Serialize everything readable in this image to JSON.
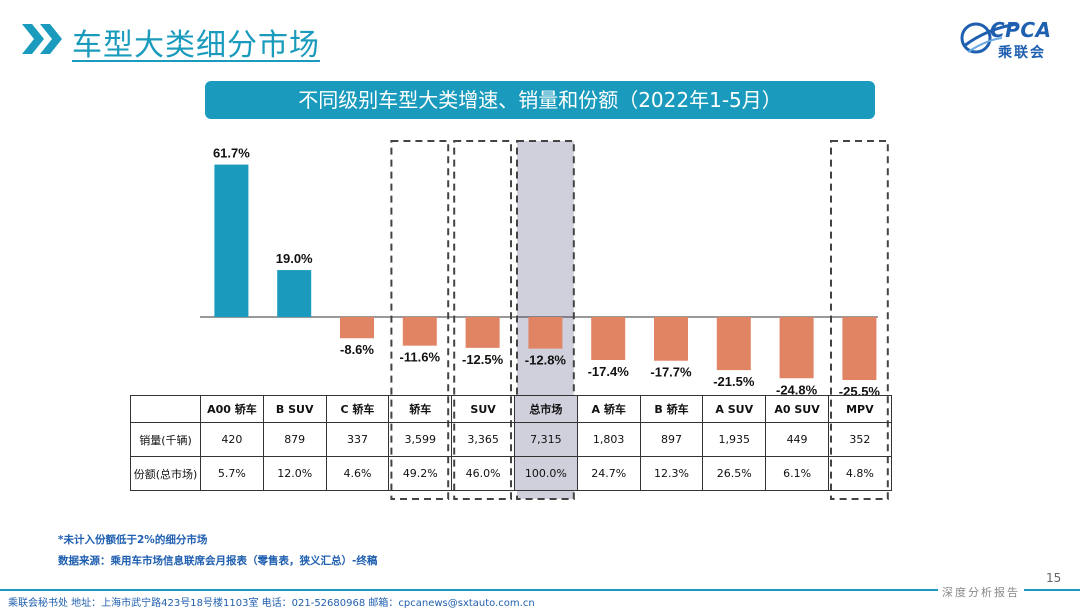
{
  "header": {
    "title": "车型大类细分市场",
    "logo_text": "CPCA",
    "logo_sub": "乘联会"
  },
  "banner": {
    "text": "不同级别车型大类增速、销量和份额（2022年1-5月）"
  },
  "colors": {
    "accent": "#1a9bbd",
    "positive": "#1a9bbd",
    "negative": "#e08463",
    "brand": "#1f5fb0",
    "highlight": "#d0d0dc"
  },
  "chart_data": {
    "type": "bar",
    "title": "不同级别车型大类增速、销量和份额（2022年1-5月）",
    "categories": [
      "A00 轿车",
      "B SUV",
      "C 轿车",
      "轿车",
      "SUV",
      "总市场",
      "A 轿车",
      "B 轿车",
      "A SUV",
      "A0 SUV",
      "MPV"
    ],
    "values": [
      61.7,
      19.0,
      -8.6,
      -11.6,
      -12.5,
      -12.8,
      -17.4,
      -17.7,
      -21.5,
      -24.8,
      -25.5
    ],
    "value_labels": [
      "61.7%",
      "19.0%",
      "-8.6%",
      "-11.6%",
      "-12.5%",
      "-12.8%",
      "-17.4%",
      "-17.7%",
      "-21.5%",
      "-24.8%",
      "-25.5%"
    ],
    "unit": "%",
    "ylim": [
      -26,
      62
    ],
    "dashed_highlight": [
      "轿车",
      "SUV",
      "总市场",
      "MPV"
    ],
    "shaded_highlight": [
      "总市场"
    ],
    "xlabel": "",
    "ylabel": ""
  },
  "table": {
    "rows": [
      {
        "label": "销量(千辆)",
        "cells": [
          "420",
          "879",
          "337",
          "3,599",
          "3,365",
          "7,315",
          "1,803",
          "897",
          "1,935",
          "449",
          "352"
        ]
      },
      {
        "label": "份额(总市场)",
        "cells": [
          "5.7%",
          "12.0%",
          "4.6%",
          "49.2%",
          "46.0%",
          "100.0%",
          "24.7%",
          "12.3%",
          "26.5%",
          "6.1%",
          "4.8%"
        ]
      }
    ]
  },
  "notes": {
    "note1": "*未计入份额低于2%的细分市场",
    "note2": "数据来源：乘用车市场信息联席会月报表（零售表，狭义汇总）-终稿"
  },
  "footer": {
    "text": "乘联会秘书处   地址：上海市武宁路423号18号楼1103室  电话：021-52680968   邮箱：cpcanews@sxtauto.com.cn",
    "tag": "深度分析报告",
    "page": "15"
  }
}
